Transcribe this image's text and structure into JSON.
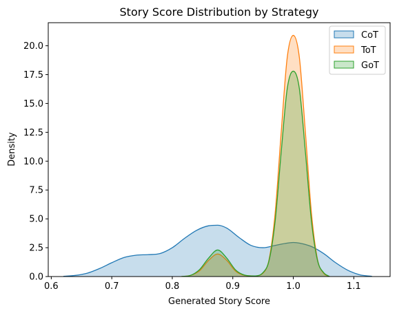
{
  "chart_data": {
    "type": "area",
    "title": "Story Score Distribution by Strategy",
    "xlabel": "Generated Story Score",
    "ylabel": "Density",
    "xlim": [
      0.595,
      1.16
    ],
    "ylim": [
      0,
      22
    ],
    "xticks": [
      0.6,
      0.7,
      0.8,
      0.9,
      1.0,
      1.1
    ],
    "xtick_labels": [
      "0.6",
      "0.7",
      "0.8",
      "0.9",
      "1.0",
      "1.1"
    ],
    "yticks": [
      0,
      2.5,
      5,
      7.5,
      10,
      12.5,
      15,
      17.5,
      20
    ],
    "ytick_labels": [
      "0.0",
      "2.5",
      "5.0",
      "7.5",
      "10.0",
      "12.5",
      "15.0",
      "17.5",
      "20.0"
    ],
    "grid": false,
    "legend_position": "top-right",
    "series": [
      {
        "name": "CoT",
        "color": "#1f77b4",
        "x": [
          0.62,
          0.64,
          0.66,
          0.68,
          0.7,
          0.72,
          0.74,
          0.76,
          0.78,
          0.8,
          0.82,
          0.84,
          0.86,
          0.875,
          0.89,
          0.91,
          0.93,
          0.95,
          0.97,
          0.99,
          1.0,
          1.01,
          1.03,
          1.05,
          1.07,
          1.09,
          1.11,
          1.13
        ],
        "values": [
          0.02,
          0.1,
          0.3,
          0.7,
          1.2,
          1.65,
          1.85,
          1.9,
          2.0,
          2.5,
          3.3,
          4.0,
          4.4,
          4.45,
          4.2,
          3.4,
          2.7,
          2.5,
          2.7,
          2.9,
          2.95,
          2.9,
          2.6,
          2.0,
          1.2,
          0.55,
          0.15,
          0.02
        ]
      },
      {
        "name": "ToT",
        "color": "#ff7f0e",
        "x": [
          0.815,
          0.83,
          0.845,
          0.86,
          0.875,
          0.89,
          0.905,
          0.92,
          0.935,
          0.95,
          0.96,
          0.97,
          0.98,
          0.99,
          1.0,
          1.01,
          1.02,
          1.03,
          1.04,
          1.05,
          1.06
        ],
        "values": [
          0.0,
          0.1,
          0.5,
          1.4,
          1.95,
          1.4,
          0.45,
          0.1,
          0.05,
          0.3,
          1.5,
          5.5,
          12.5,
          19.0,
          20.9,
          19.0,
          12.5,
          5.5,
          1.5,
          0.3,
          0.0
        ]
      },
      {
        "name": "GoT",
        "color": "#2ca02c",
        "x": [
          0.815,
          0.83,
          0.845,
          0.86,
          0.875,
          0.89,
          0.905,
          0.92,
          0.935,
          0.95,
          0.96,
          0.97,
          0.98,
          0.99,
          1.0,
          1.01,
          1.02,
          1.03,
          1.04,
          1.05,
          1.06
        ],
        "values": [
          0.0,
          0.1,
          0.6,
          1.6,
          2.3,
          1.6,
          0.55,
          0.12,
          0.05,
          0.35,
          1.4,
          4.8,
          10.8,
          16.3,
          17.8,
          16.3,
          10.8,
          4.8,
          1.4,
          0.35,
          0.0
        ]
      }
    ]
  }
}
